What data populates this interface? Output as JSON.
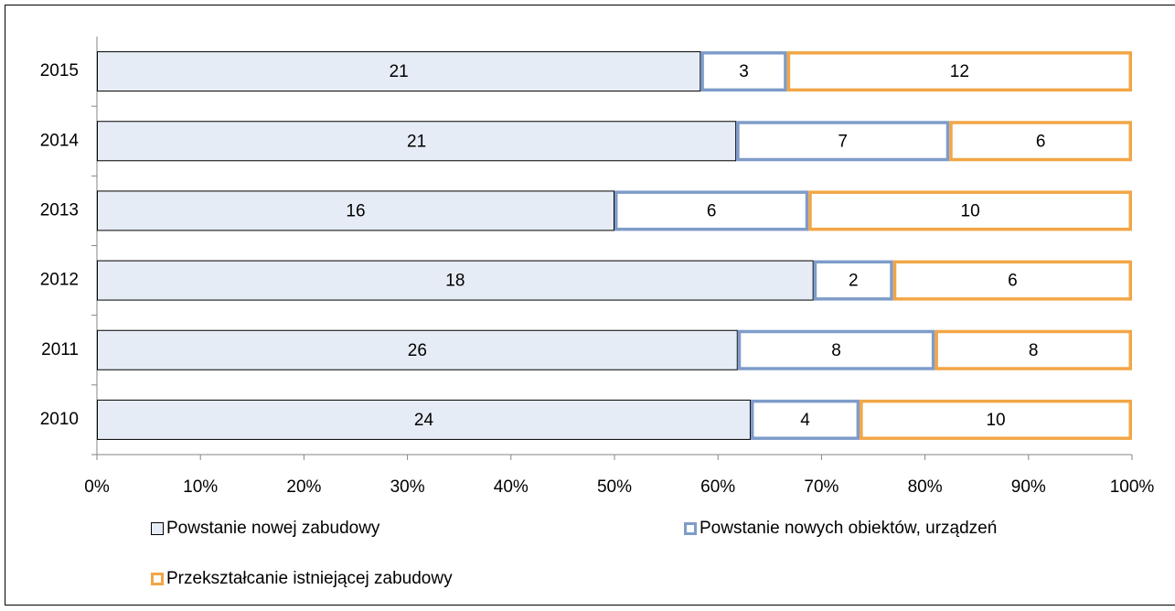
{
  "chart_data": {
    "type": "bar",
    "orientation": "horizontal",
    "stacked": "percent",
    "categories": [
      "2010",
      "2011",
      "2012",
      "2013",
      "2014",
      "2015"
    ],
    "series": [
      {
        "name": "Powstanie nowej zabudowy",
        "color": "#e6ecf5",
        "edge": "#000000",
        "values": [
          24,
          26,
          18,
          16,
          21,
          21
        ]
      },
      {
        "name": "Powstanie nowych obiektów, urządzeń",
        "color": "#ffffff",
        "edge": "#7f9cc9",
        "values": [
          4,
          8,
          2,
          6,
          7,
          3
        ]
      },
      {
        "name": "Przekształcanie istniejącej zabudowy",
        "color": "#ffffff",
        "edge": "#f2a646",
        "values": [
          10,
          8,
          6,
          10,
          6,
          12
        ]
      }
    ],
    "xlim": [
      0,
      100
    ],
    "xticks": [
      {
        "value": 0,
        "label": "0%"
      },
      {
        "value": 10,
        "label": "10%"
      },
      {
        "value": 20,
        "label": "20%"
      },
      {
        "value": 30,
        "label": "30%"
      },
      {
        "value": 40,
        "label": "40%"
      },
      {
        "value": 50,
        "label": "50%"
      },
      {
        "value": 60,
        "label": "60%"
      },
      {
        "value": 70,
        "label": "70%"
      },
      {
        "value": 80,
        "label": "80%"
      },
      {
        "value": 90,
        "label": "90%"
      },
      {
        "value": 100,
        "label": "100%"
      }
    ],
    "grid": false,
    "legend": "bottom"
  }
}
